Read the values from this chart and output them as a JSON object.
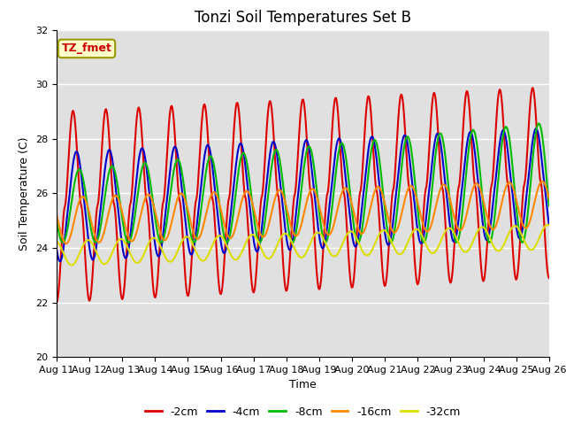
{
  "title": "Tonzi Soil Temperatures Set B",
  "xlabel": "Time",
  "ylabel": "Soil Temperature (C)",
  "ylim": [
    20,
    32
  ],
  "series": [
    {
      "label": "-2cm",
      "color": "#dd0000"
    },
    {
      "label": "-4cm",
      "color": "#0000cc"
    },
    {
      "label": "-8cm",
      "color": "#00bb00"
    },
    {
      "label": "-16cm",
      "color": "#ff8800"
    },
    {
      "label": "-32cm",
      "color": "#dddd00"
    }
  ],
  "xtick_labels": [
    "Aug 11",
    "Aug 12",
    "Aug 13",
    "Aug 14",
    "Aug 15",
    "Aug 16",
    "Aug 17",
    "Aug 18",
    "Aug 19",
    "Aug 20",
    "Aug 21",
    "Aug 22",
    "Aug 23",
    "Aug 24",
    "Aug 25",
    "Aug 26"
  ],
  "annotation_text": "TZ_fmet",
  "bg_color": "#e0e0e0",
  "fig_color": "#ffffff",
  "grid_color": "#ffffff",
  "linewidth": 1.5
}
